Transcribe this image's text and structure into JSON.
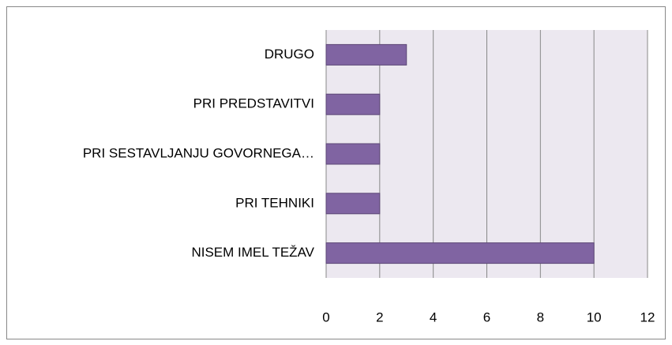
{
  "chart_data": {
    "type": "barh",
    "categories": [
      "DRUGO",
      "PRI PREDSTAVITVI",
      "PRI SESTAVLJANJU GOVORNEGA…",
      "PRI TEHNIKI",
      "NISEM IMEL TEŽAV"
    ],
    "values": [
      3,
      2,
      2,
      2,
      10
    ],
    "color": "#8064a2",
    "xlim": [
      0,
      12
    ],
    "xticks": [
      0,
      2,
      4,
      6,
      8,
      10,
      12
    ],
    "grid": true
  }
}
